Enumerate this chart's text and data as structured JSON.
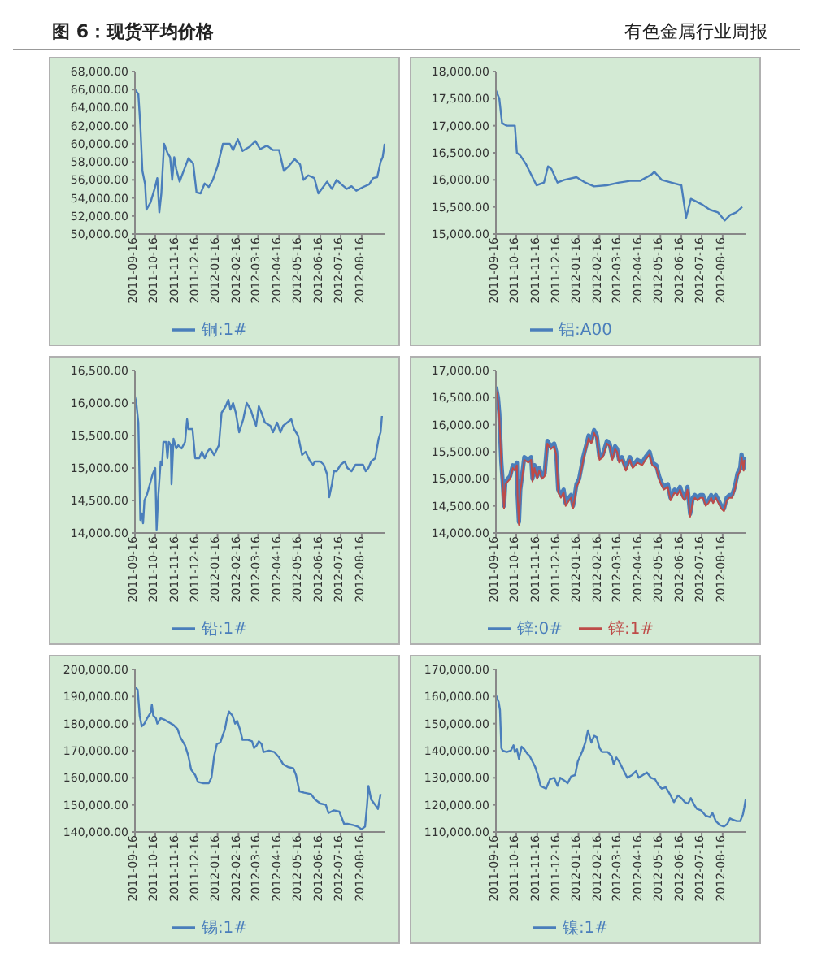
{
  "chart_data": [
    {
      "type": "line",
      "title": "图 6：现货平均价格",
      "annotations": [
        "有色金属行业周报"
      ],
      "legend": "bottom",
      "xlim": [
        "2011-09-16",
        "2012-09-20"
      ],
      "xticks": [
        "2011-09-16",
        "2011-10-16",
        "2011-11-16",
        "2011-12-16",
        "2012-01-16",
        "2012-02-16",
        "2012-03-16",
        "2012-04-16",
        "2012-05-16",
        "2012-06-16",
        "2012-07-16",
        "2012-08-16"
      ],
      "ylim": [
        50000,
        68000
      ],
      "yticks": [
        {
          "value": 50000,
          "label": "50,000.00"
        },
        {
          "value": 52000,
          "label": "52,000.00"
        },
        {
          "value": 54000,
          "label": "54,000.00"
        },
        {
          "value": 56000,
          "label": "56,000.00"
        },
        {
          "value": 58000,
          "label": "58,000.00"
        },
        {
          "value": 60000,
          "label": "60,000.00"
        },
        {
          "value": 62000,
          "label": "62,000.00"
        },
        {
          "value": 64000,
          "label": "64,000.00"
        },
        {
          "value": 66000,
          "label": "66,000.00"
        },
        {
          "value": 68000,
          "label": "68,000.00"
        }
      ],
      "x": [
        "2011-09-16",
        "2011-09-21",
        "2011-09-24",
        "2011-09-27",
        "2011-10-01",
        "2011-10-03",
        "2011-10-09",
        "2011-10-15",
        "2011-10-19",
        "2011-10-22",
        "2011-10-25",
        "2011-10-29",
        "2011-11-03",
        "2011-11-07",
        "2011-11-10",
        "2011-11-13",
        "2011-11-16",
        "2011-11-21",
        "2011-11-26",
        "2011-12-04",
        "2011-12-11",
        "2011-12-16",
        "2011-12-22",
        "2011-12-28",
        "2012-01-03",
        "2012-01-09",
        "2012-01-16",
        "2012-01-24",
        "2012-02-03",
        "2012-02-08",
        "2012-02-15",
        "2012-02-22",
        "2012-03-04",
        "2012-03-12",
        "2012-03-19",
        "2012-03-29",
        "2012-04-07",
        "2012-04-16",
        "2012-04-23",
        "2012-04-30",
        "2012-05-09",
        "2012-05-17",
        "2012-05-22",
        "2012-05-29",
        "2012-06-07",
        "2012-06-13",
        "2012-06-18",
        "2012-06-26",
        "2012-07-03",
        "2012-07-10",
        "2012-07-17",
        "2012-07-25",
        "2012-08-01",
        "2012-08-08",
        "2012-08-18",
        "2012-08-27",
        "2012-09-02",
        "2012-09-08",
        "2012-09-13",
        "2012-09-16",
        "2012-09-19"
      ],
      "series": [
        {
          "name": "铜:1#",
          "color": "#4a7ebb",
          "values": [
            66000,
            65500,
            62000,
            57000,
            55500,
            52700,
            53500,
            55000,
            56200,
            52400,
            54500,
            60000,
            59000,
            58500,
            56000,
            58500,
            57200,
            55800,
            56800,
            58400,
            57800,
            54600,
            54500,
            55600,
            55200,
            56000,
            57500,
            60000,
            60000,
            59300,
            60500,
            59200,
            59700,
            60300,
            59400,
            59800,
            59300,
            59300,
            57000,
            57500,
            58300,
            57700,
            56000,
            56500,
            56200,
            54500,
            55000,
            55800,
            55000,
            56000,
            55500,
            55000,
            55300,
            54800,
            55200,
            55500,
            56200,
            56300,
            58000,
            58500,
            60000
          ]
        }
      ]
    },
    {
      "type": "line",
      "legend": "bottom",
      "xlim": [
        "2011-09-16",
        "2012-09-20"
      ],
      "xticks": [
        "2011-09-16",
        "2011-10-16",
        "2011-11-16",
        "2011-12-16",
        "2012-01-16",
        "2012-02-16",
        "2012-03-16",
        "2012-04-16",
        "2012-05-16",
        "2012-06-16",
        "2012-07-16",
        "2012-08-16"
      ],
      "ylim": [
        15000,
        18000
      ],
      "yticks": [
        {
          "value": 15000,
          "label": "15,000.00"
        },
        {
          "value": 15500,
          "label": "15,500.00"
        },
        {
          "value": 16000,
          "label": "16,000.00"
        },
        {
          "value": 16500,
          "label": "16,500.00"
        },
        {
          "value": 17000,
          "label": "17,000.00"
        },
        {
          "value": 17500,
          "label": "17,500.00"
        },
        {
          "value": 18000,
          "label": "18,000.00"
        }
      ],
      "x": [
        "2011-09-16",
        "2011-09-21",
        "2011-09-25",
        "2011-10-02",
        "2011-10-14",
        "2011-10-17",
        "2011-10-22",
        "2011-10-30",
        "2011-11-07",
        "2011-11-15",
        "2011-11-26",
        "2011-12-02",
        "2011-12-07",
        "2011-12-16",
        "2011-12-26",
        "2012-01-13",
        "2012-01-26",
        "2012-02-08",
        "2012-02-27",
        "2012-03-16",
        "2012-04-01",
        "2012-04-16",
        "2012-05-03",
        "2012-05-07",
        "2012-05-18",
        "2012-06-01",
        "2012-06-16",
        "2012-06-23",
        "2012-06-30",
        "2012-07-16",
        "2012-07-28",
        "2012-08-09",
        "2012-08-19",
        "2012-08-27",
        "2012-09-05",
        "2012-09-14"
      ],
      "series": [
        {
          "name": "铝:A00",
          "color": "#4a7ebb",
          "values": [
            17650,
            17500,
            17050,
            17000,
            17000,
            16500,
            16450,
            16300,
            16100,
            15900,
            15950,
            16250,
            16200,
            15950,
            16000,
            16050,
            15950,
            15880,
            15900,
            15950,
            15980,
            15980,
            16100,
            16150,
            16000,
            15950,
            15900,
            15300,
            15650,
            15550,
            15450,
            15400,
            15250,
            15350,
            15400,
            15500
          ]
        }
      ]
    },
    {
      "type": "line",
      "legend": "bottom",
      "xlim": [
        "2011-09-16",
        "2012-09-20"
      ],
      "xticks": [
        "2011-09-16",
        "2011-10-16",
        "2011-11-16",
        "2011-12-16",
        "2012-01-16",
        "2012-02-16",
        "2012-03-16",
        "2012-04-16",
        "2012-05-16",
        "2012-06-16",
        "2012-07-16",
        "2012-08-16"
      ],
      "ylim": [
        14000,
        16500
      ],
      "yticks": [
        {
          "value": 14000,
          "label": "14,000.00"
        },
        {
          "value": 14500,
          "label": "14,500.00"
        },
        {
          "value": 15000,
          "label": "15,000.00"
        },
        {
          "value": 15500,
          "label": "15,500.00"
        },
        {
          "value": 16000,
          "label": "16,000.00"
        },
        {
          "value": 16500,
          "label": "16,500.00"
        }
      ],
      "x": [
        "2011-09-16",
        "2011-09-18",
        "2011-09-21",
        "2011-09-24",
        "2011-09-26",
        "2011-09-28",
        "2011-09-30",
        "2011-10-04",
        "2011-10-08",
        "2011-10-12",
        "2011-10-16",
        "2011-10-18",
        "2011-10-20",
        "2011-10-24",
        "2011-10-26",
        "2011-10-28",
        "2011-11-01",
        "2011-11-03",
        "2011-11-05",
        "2011-11-08",
        "2011-11-09",
        "2011-11-12",
        "2011-11-16",
        "2011-11-19",
        "2011-11-24",
        "2011-11-29",
        "2011-12-02",
        "2011-12-04",
        "2011-12-10",
        "2011-12-14",
        "2011-12-20",
        "2011-12-24",
        "2011-12-28",
        "2012-01-01",
        "2012-01-05",
        "2012-01-11",
        "2012-01-18",
        "2012-01-22",
        "2012-01-28",
        "2012-02-01",
        "2012-02-04",
        "2012-02-08",
        "2012-02-12",
        "2012-02-17",
        "2012-02-23",
        "2012-02-28",
        "2012-03-05",
        "2012-03-08",
        "2012-03-13",
        "2012-03-17",
        "2012-03-21",
        "2012-03-26",
        "2012-04-03",
        "2012-04-07",
        "2012-04-13",
        "2012-04-18",
        "2012-04-22",
        "2012-04-28",
        "2012-05-04",
        "2012-05-08",
        "2012-05-14",
        "2012-05-20",
        "2012-05-25",
        "2012-06-01",
        "2012-06-05",
        "2012-06-08",
        "2012-06-16",
        "2012-06-21",
        "2012-06-26",
        "2012-06-29",
        "2012-07-03",
        "2012-07-06",
        "2012-07-10",
        "2012-07-16",
        "2012-07-22",
        "2012-07-26",
        "2012-08-01",
        "2012-08-07",
        "2012-08-12",
        "2012-08-18",
        "2012-08-22",
        "2012-08-26",
        "2012-08-30",
        "2012-09-05",
        "2012-09-10",
        "2012-09-13",
        "2012-09-15"
      ],
      "series": [
        {
          "name": "铅:1#",
          "color": "#4a7ebb",
          "values": [
            16100,
            16000,
            15700,
            14200,
            14300,
            14150,
            14500,
            14600,
            14750,
            14900,
            15000,
            14050,
            14500,
            15100,
            15050,
            15400,
            15400,
            15150,
            15400,
            15350,
            14750,
            15450,
            15300,
            15350,
            15300,
            15400,
            15750,
            15600,
            15600,
            15150,
            15150,
            15250,
            15150,
            15250,
            15300,
            15200,
            15350,
            15850,
            15950,
            16050,
            15900,
            16000,
            15850,
            15550,
            15750,
            16000,
            15900,
            15800,
            15650,
            15950,
            15850,
            15700,
            15650,
            15550,
            15700,
            15550,
            15650,
            15700,
            15750,
            15600,
            15500,
            15200,
            15250,
            15100,
            15050,
            15100,
            15100,
            15050,
            14900,
            14550,
            14750,
            14950,
            14950,
            15050,
            15100,
            15000,
            14950,
            15050,
            15050,
            15050,
            14950,
            15000,
            15100,
            15150,
            15450,
            15550,
            15800
          ]
        }
      ]
    },
    {
      "type": "line",
      "legend": "bottom",
      "xlim": [
        "2011-09-16",
        "2012-09-20"
      ],
      "xticks": [
        "2011-09-16",
        "2011-10-16",
        "2011-11-16",
        "2011-12-16",
        "2012-01-16",
        "2012-02-16",
        "2012-03-16",
        "2012-04-16",
        "2012-05-16",
        "2012-06-16",
        "2012-07-16",
        "2012-08-16"
      ],
      "ylim": [
        14000,
        17000
      ],
      "yticks": [
        {
          "value": 14000,
          "label": "14,000.00"
        },
        {
          "value": 14500,
          "label": "14,500.00"
        },
        {
          "value": 15000,
          "label": "15,000.00"
        },
        {
          "value": 15500,
          "label": "15,500.00"
        },
        {
          "value": 16000,
          "label": "16,000.00"
        },
        {
          "value": 16500,
          "label": "16,500.00"
        },
        {
          "value": 17000,
          "label": "17,000.00"
        }
      ],
      "x": [
        "2011-09-16",
        "2011-09-19",
        "2011-09-21",
        "2011-09-24",
        "2011-09-26",
        "2011-09-28",
        "2011-09-30",
        "2011-10-07",
        "2011-10-11",
        "2011-10-14",
        "2011-10-17",
        "2011-10-18",
        "2011-10-20",
        "2011-10-22",
        "2011-10-26",
        "2011-10-28",
        "2011-11-03",
        "2011-11-07",
        "2011-11-09",
        "2011-11-12",
        "2011-11-16",
        "2011-11-19",
        "2011-11-23",
        "2011-11-27",
        "2011-12-01",
        "2011-12-06",
        "2011-12-11",
        "2011-12-14",
        "2011-12-17",
        "2011-12-21",
        "2011-12-25",
        "2011-12-28",
        "2012-01-02",
        "2012-01-05",
        "2012-01-08",
        "2012-01-13",
        "2012-01-17",
        "2012-01-23",
        "2012-01-27",
        "2012-01-31",
        "2012-02-04",
        "2012-02-08",
        "2012-02-12",
        "2012-02-16",
        "2012-02-21",
        "2012-02-27",
        "2012-03-02",
        "2012-03-06",
        "2012-03-10",
        "2012-03-13",
        "2012-03-16",
        "2012-03-20",
        "2012-03-26",
        "2012-04-01",
        "2012-04-05",
        "2012-04-09",
        "2012-04-12",
        "2012-04-19",
        "2012-04-24",
        "2012-04-30",
        "2012-05-04",
        "2012-05-10",
        "2012-05-14",
        "2012-05-17",
        "2012-05-21",
        "2012-05-27",
        "2012-05-31",
        "2012-06-06",
        "2012-06-10",
        "2012-06-14",
        "2012-06-18",
        "2012-06-21",
        "2012-06-25",
        "2012-06-29",
        "2012-07-03",
        "2012-07-06",
        "2012-07-10",
        "2012-07-14",
        "2012-07-18",
        "2012-07-22",
        "2012-07-26",
        "2012-07-30",
        "2012-08-02",
        "2012-08-06",
        "2012-08-10",
        "2012-08-14",
        "2012-08-18",
        "2012-08-22",
        "2012-08-26",
        "2012-08-30",
        "2012-09-03",
        "2012-09-07",
        "2012-09-11",
        "2012-09-13",
        "2012-09-16",
        "2012-09-17"
      ],
      "series": [
        {
          "name": "锌:0#",
          "color": "#4a7ebb",
          "values": [
            16700,
            16500,
            16200,
            15300,
            14950,
            14500,
            14950,
            15050,
            15250,
            15200,
            15300,
            14700,
            14200,
            14800,
            15200,
            15400,
            15350,
            15400,
            15000,
            15250,
            15050,
            15200,
            15050,
            15100,
            15700,
            15600,
            15650,
            15500,
            14800,
            14700,
            14800,
            14550,
            14650,
            14700,
            14500,
            14900,
            15000,
            15400,
            15600,
            15800,
            15700,
            15900,
            15800,
            15400,
            15450,
            15700,
            15650,
            15400,
            15600,
            15550,
            15350,
            15400,
            15200,
            15400,
            15250,
            15300,
            15350,
            15300,
            15400,
            15500,
            15300,
            15250,
            15050,
            14950,
            14850,
            14900,
            14650,
            14800,
            14750,
            14850,
            14700,
            14650,
            14850,
            14350,
            14650,
            14700,
            14650,
            14700,
            14700,
            14550,
            14600,
            14700,
            14600,
            14700,
            14600,
            14500,
            14450,
            14650,
            14700,
            14700,
            14850,
            15100,
            15200,
            15450,
            15200,
            15400
          ]
        },
        {
          "name": "锌:1#",
          "color": "#be4b48",
          "values": [
            16650,
            16450,
            16150,
            15250,
            14900,
            14450,
            14900,
            15000,
            15200,
            15150,
            15250,
            14650,
            14150,
            14750,
            15150,
            15350,
            15300,
            15350,
            14950,
            15200,
            15000,
            15150,
            15000,
            15050,
            15650,
            15550,
            15600,
            15450,
            14750,
            14650,
            14750,
            14500,
            14600,
            14650,
            14450,
            14850,
            14950,
            15350,
            15550,
            15750,
            15650,
            15850,
            15750,
            15350,
            15400,
            15650,
            15600,
            15350,
            15550,
            15500,
            15300,
            15350,
            15150,
            15350,
            15200,
            15250,
            15300,
            15250,
            15350,
            15450,
            15250,
            15200,
            15000,
            14900,
            14800,
            14850,
            14600,
            14750,
            14700,
            14800,
            14650,
            14600,
            14800,
            14300,
            14600,
            14650,
            14600,
            14650,
            14650,
            14500,
            14550,
            14650,
            14550,
            14650,
            14550,
            14450,
            14400,
            14600,
            14650,
            14650,
            14800,
            15050,
            15150,
            15400,
            15150,
            15350
          ]
        }
      ]
    },
    {
      "type": "line",
      "legend": "bottom",
      "xlim": [
        "2011-09-16",
        "2012-09-20"
      ],
      "xticks": [
        "2011-09-16",
        "2011-10-16",
        "2011-11-16",
        "2011-12-16",
        "2012-01-16",
        "2012-02-16",
        "2012-03-16",
        "2012-04-16",
        "2012-05-16",
        "2012-06-16",
        "2012-07-16",
        "2012-08-16"
      ],
      "ylim": [
        140000,
        200000
      ],
      "yticks": [
        {
          "value": 140000,
          "label": "140,000.00"
        },
        {
          "value": 150000,
          "label": "150,000.00"
        },
        {
          "value": 160000,
          "label": "160,000.00"
        },
        {
          "value": 170000,
          "label": "170,000.00"
        },
        {
          "value": 180000,
          "label": "180,000.00"
        },
        {
          "value": 190000,
          "label": "190,000.00"
        },
        {
          "value": 200000,
          "label": "200,000.00"
        }
      ],
      "x": [
        "2011-09-16",
        "2011-09-20",
        "2011-09-23",
        "2011-09-26",
        "2011-09-30",
        "2011-10-04",
        "2011-10-09",
        "2011-10-11",
        "2011-10-13",
        "2011-10-17",
        "2011-10-19",
        "2011-10-24",
        "2011-10-29",
        "2011-11-05",
        "2011-11-12",
        "2011-11-18",
        "2011-11-22",
        "2011-11-29",
        "2011-12-04",
        "2011-12-08",
        "2011-12-14",
        "2011-12-18",
        "2011-12-26",
        "2012-01-03",
        "2012-01-07",
        "2012-01-11",
        "2012-01-15",
        "2012-01-20",
        "2012-01-27",
        "2012-01-30",
        "2012-02-02",
        "2012-02-07",
        "2012-02-11",
        "2012-02-14",
        "2012-02-18",
        "2012-02-22",
        "2012-03-01",
        "2012-03-07",
        "2012-03-10",
        "2012-03-14",
        "2012-03-17",
        "2012-03-21",
        "2012-03-24",
        "2012-04-01",
        "2012-04-09",
        "2012-04-16",
        "2012-04-22",
        "2012-04-29",
        "2012-05-07",
        "2012-05-11",
        "2012-05-16",
        "2012-05-23",
        "2012-06-02",
        "2012-06-08",
        "2012-06-16",
        "2012-06-24",
        "2012-06-28",
        "2012-07-02",
        "2012-07-06",
        "2012-07-14",
        "2012-07-21",
        "2012-07-26",
        "2012-08-04",
        "2012-08-10",
        "2012-08-16",
        "2012-08-21",
        "2012-08-24",
        "2012-08-26",
        "2012-08-30",
        "2012-09-05",
        "2012-09-09",
        "2012-09-13"
      ],
      "series": [
        {
          "name": "锡:1#",
          "color": "#4a7ebb",
          "values": [
            193500,
            192500,
            183000,
            179000,
            180000,
            182000,
            184000,
            187000,
            183000,
            182000,
            180000,
            182000,
            181500,
            180500,
            179500,
            178000,
            175000,
            172000,
            168000,
            163000,
            161000,
            158500,
            158000,
            158000,
            160000,
            168000,
            172500,
            173000,
            178000,
            182000,
            184500,
            183000,
            180000,
            181000,
            178000,
            174000,
            174000,
            173500,
            171000,
            172000,
            173500,
            172500,
            169500,
            170000,
            169500,
            167500,
            165000,
            164000,
            163500,
            161000,
            155000,
            154500,
            154000,
            152000,
            150500,
            150000,
            147000,
            147500,
            148000,
            147500,
            143000,
            143000,
            142500,
            142000,
            141000,
            142000,
            150000,
            157000,
            152000,
            150000,
            148500,
            154000
          ]
        }
      ]
    },
    {
      "type": "line",
      "legend": "bottom",
      "xlim": [
        "2011-09-16",
        "2012-09-20"
      ],
      "xticks": [
        "2011-09-16",
        "2011-10-16",
        "2011-11-16",
        "2011-12-16",
        "2012-01-16",
        "2012-02-16",
        "2012-03-16",
        "2012-04-16",
        "2012-05-16",
        "2012-06-16",
        "2012-07-16",
        "2012-08-16"
      ],
      "ylim": [
        110000,
        170000
      ],
      "yticks": [
        {
          "value": 110000,
          "label": "110,000.00"
        },
        {
          "value": 120000,
          "label": "120,000.00"
        },
        {
          "value": 130000,
          "label": "130,000.00"
        },
        {
          "value": 140000,
          "label": "140,000.00"
        },
        {
          "value": 150000,
          "label": "150,000.00"
        },
        {
          "value": 160000,
          "label": "160,000.00"
        },
        {
          "value": 170000,
          "label": "170,000.00"
        }
      ],
      "x": [
        "2011-09-16",
        "2011-09-20",
        "2011-09-22",
        "2011-09-24",
        "2011-09-26",
        "2011-10-02",
        "2011-10-08",
        "2011-10-12",
        "2011-10-14",
        "2011-10-17",
        "2011-10-20",
        "2011-10-24",
        "2011-10-28",
        "2011-11-01",
        "2011-11-05",
        "2011-11-09",
        "2011-11-13",
        "2011-11-17",
        "2011-11-21",
        "2011-11-29",
        "2011-12-05",
        "2011-12-11",
        "2011-12-16",
        "2011-12-20",
        "2011-12-26",
        "2011-12-31",
        "2012-01-05",
        "2012-01-11",
        "2012-01-15",
        "2012-01-22",
        "2012-01-26",
        "2012-01-30",
        "2012-02-04",
        "2012-02-08",
        "2012-02-12",
        "2012-02-16",
        "2012-02-20",
        "2012-02-28",
        "2012-03-05",
        "2012-03-08",
        "2012-03-12",
        "2012-03-16",
        "2012-03-22",
        "2012-03-28",
        "2012-04-04",
        "2012-04-10",
        "2012-04-14",
        "2012-04-20",
        "2012-04-26",
        "2012-05-02",
        "2012-05-08",
        "2012-05-14",
        "2012-05-18",
        "2012-05-24",
        "2012-05-30",
        "2012-06-05",
        "2012-06-11",
        "2012-06-16",
        "2012-06-21",
        "2012-06-26",
        "2012-06-30",
        "2012-07-05",
        "2012-07-09",
        "2012-07-15",
        "2012-07-22",
        "2012-07-28",
        "2012-08-01",
        "2012-08-06",
        "2012-08-12",
        "2012-08-18",
        "2012-08-23",
        "2012-08-27",
        "2012-08-31",
        "2012-09-06",
        "2012-09-11",
        "2012-09-15",
        "2012-09-17",
        "2012-09-19"
      ],
      "series": [
        {
          "name": "镍:1#",
          "color": "#4a7ebb",
          "values": [
            160500,
            158000,
            155000,
            141000,
            140000,
            139500,
            140000,
            142000,
            139500,
            140500,
            137000,
            141500,
            140500,
            139000,
            138000,
            136000,
            134000,
            131000,
            127000,
            126000,
            129500,
            130000,
            127000,
            130000,
            129000,
            128000,
            130500,
            131000,
            136000,
            140000,
            143000,
            147500,
            143000,
            145500,
            145000,
            141000,
            139500,
            139500,
            138000,
            135000,
            137500,
            136000,
            133000,
            130000,
            131000,
            132500,
            130000,
            131000,
            132000,
            130000,
            129500,
            127000,
            126000,
            126500,
            124000,
            121000,
            123500,
            122500,
            121000,
            120500,
            122500,
            120000,
            118500,
            118000,
            116000,
            115500,
            117000,
            114000,
            112500,
            112000,
            113000,
            115000,
            114500,
            114000,
            114000,
            116500,
            119000,
            122000
          ]
        }
      ]
    }
  ]
}
